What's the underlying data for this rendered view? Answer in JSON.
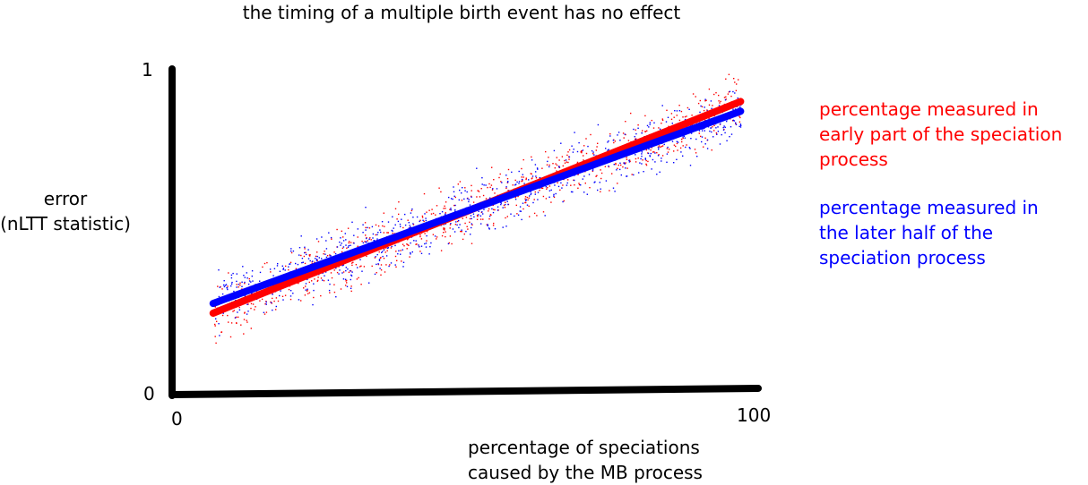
{
  "chart_data": {
    "type": "scatter",
    "title": "the timing of a multiple birth event has no effect",
    "ylabel_lines": [
      "error",
      "(nLTT statistic)"
    ],
    "xlabel_lines": [
      "percentage of speciations",
      "caused by the MB process"
    ],
    "x_ticks": [
      "0",
      "100"
    ],
    "y_ticks": [
      "0",
      "1"
    ],
    "xlim": [
      0,
      100
    ],
    "ylim": [
      0,
      1
    ],
    "grid": false,
    "legend_position": "right",
    "series": [
      {
        "name_lines": [
          "percentage measured in",
          "early part of the speciation",
          "process"
        ],
        "color": "#ff0000",
        "trend": {
          "x": [
            7,
            97
          ],
          "y": [
            0.25,
            0.9
          ]
        },
        "scatter_spread": 0.15
      },
      {
        "name_lines": [
          "percentage measured in",
          "the later half of the",
          "speciation process"
        ],
        "color": "#0000ff",
        "trend": {
          "x": [
            7,
            97
          ],
          "y": [
            0.28,
            0.87
          ]
        },
        "scatter_spread": 0.15
      }
    ]
  }
}
